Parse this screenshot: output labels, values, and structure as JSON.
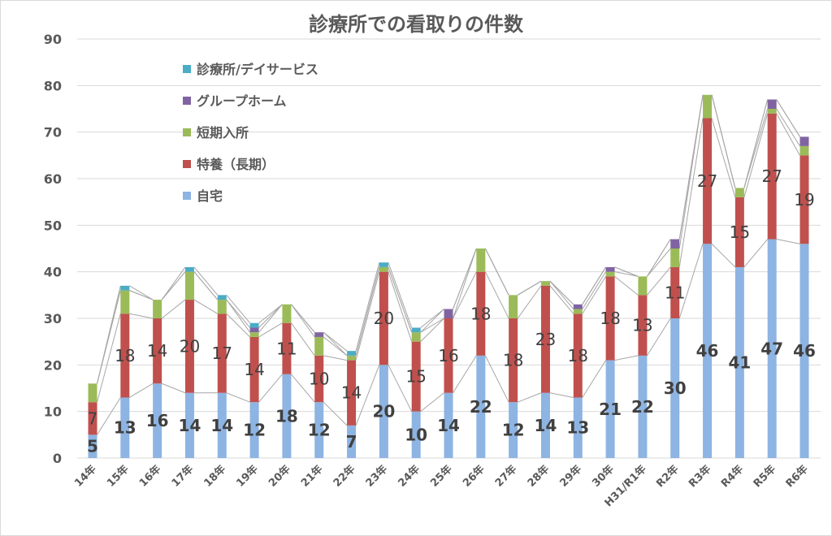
{
  "chart_data": {
    "type": "bar",
    "stacked": true,
    "title": "診療所での看取りの件数",
    "categories": [
      "14年",
      "15年",
      "16年",
      "17年",
      "18年",
      "19年",
      "20年",
      "21年",
      "22年",
      "23年",
      "24年",
      "25年",
      "26年",
      "27年",
      "28年",
      "29年",
      "30年",
      "H31/R1年",
      "R2年",
      "R3年",
      "R4年",
      "R5年",
      "R6年"
    ],
    "series": [
      {
        "name": "自宅",
        "color": "#8DB4E2",
        "values": [
          5,
          13,
          16,
          14,
          14,
          12,
          18,
          12,
          7,
          20,
          10,
          14,
          22,
          12,
          14,
          13,
          21,
          22,
          30,
          46,
          41,
          47,
          46
        ]
      },
      {
        "name": "特養（長期）",
        "color": "#C0504D",
        "values": [
          7,
          18,
          14,
          20,
          17,
          14,
          11,
          10,
          14,
          20,
          15,
          16,
          18,
          18,
          23,
          18,
          18,
          13,
          11,
          27,
          15,
          27,
          19
        ]
      },
      {
        "name": "短期入所",
        "color": "#9BBB59",
        "values": [
          4,
          5,
          4,
          6,
          3,
          1,
          4,
          4,
          1,
          1,
          2,
          0,
          5,
          5,
          1,
          1,
          1,
          4,
          4,
          5,
          2,
          1,
          2
        ]
      },
      {
        "name": "グループホーム",
        "color": "#8064A2",
        "values": [
          0,
          0,
          0,
          0,
          0,
          1,
          0,
          1,
          0,
          0,
          0,
          2,
          0,
          0,
          0,
          1,
          1,
          0,
          2,
          0,
          0,
          2,
          2
        ]
      },
      {
        "name": "診療所/デイサービス",
        "color": "#4BACC6",
        "values": [
          0,
          1,
          0,
          1,
          1,
          1,
          0,
          0,
          1,
          1,
          1,
          0,
          0,
          0,
          0,
          0,
          0,
          0,
          0,
          0,
          0,
          0,
          0
        ]
      }
    ],
    "ylim": [
      0,
      90
    ],
    "yticks": [
      0,
      10,
      20,
      30,
      40,
      50,
      60,
      70,
      80,
      90
    ],
    "grid": true,
    "legend": "top-left"
  }
}
